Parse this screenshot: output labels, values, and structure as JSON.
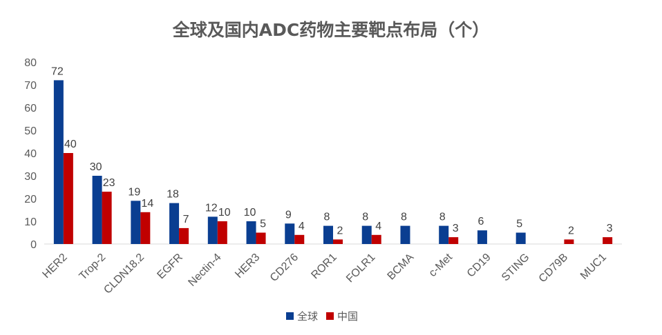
{
  "chart_data": {
    "type": "bar",
    "title": "全球及国内ADC药物主要靶点布局（个）",
    "xlabel": "",
    "ylabel": "",
    "ylim": [
      0,
      80
    ],
    "yticks": [
      0,
      10,
      20,
      30,
      40,
      50,
      60,
      70,
      80
    ],
    "grid": false,
    "legend_position": "bottom",
    "categories": [
      "HER2",
      "Trop-2",
      "CLDN18.2",
      "EGFR",
      "Nectin-4",
      "HER3",
      "CD276",
      "ROR1",
      "FOLR1",
      "BCMA",
      "c-Met",
      "CD19",
      "STING",
      "CD79B",
      "MUC1"
    ],
    "series": [
      {
        "name": "全球",
        "color": "#0a3e91",
        "values": [
          72,
          30,
          19,
          18,
          12,
          10,
          9,
          8,
          8,
          8,
          8,
          6,
          5,
          null,
          null
        ]
      },
      {
        "name": "中国",
        "color": "#c00000",
        "values": [
          40,
          23,
          14,
          7,
          10,
          5,
          4,
          2,
          4,
          null,
          3,
          null,
          null,
          2,
          3
        ]
      }
    ]
  }
}
